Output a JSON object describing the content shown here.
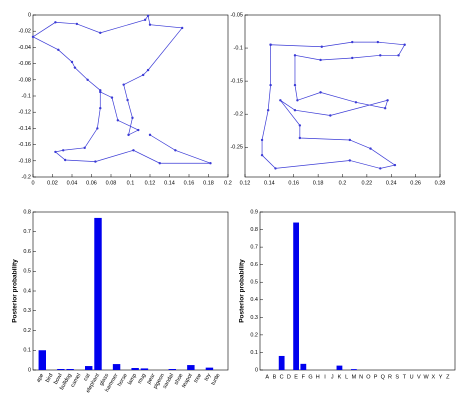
{
  "chart_data": [
    {
      "type": "line",
      "color": "#3b3bd6",
      "x": [
        0.069,
        0.056,
        0.043,
        0.04,
        0.026,
        0,
        0.023,
        0.045,
        0.069,
        0.115,
        0.118,
        0.12,
        0.153,
        0.118,
        0.113,
        0.093,
        0.097,
        0.102,
        0.098,
        0.108,
        0.087,
        0.081,
        0.069,
        0.069,
        0.066,
        0.053,
        0.031,
        0.023,
        0.033,
        0.064,
        0.103,
        0.13,
        0.182,
        0.146,
        0.12
      ],
      "values": [
        -0.093,
        -0.08,
        -0.065,
        -0.058,
        -0.043,
        -0.027,
        -0.009,
        -0.011,
        -0.022,
        -0.006,
        -0.001,
        -0.012,
        -0.016,
        -0.068,
        -0.074,
        -0.086,
        -0.105,
        -0.127,
        -0.148,
        -0.142,
        -0.13,
        -0.102,
        -0.095,
        -0.115,
        -0.14,
        -0.164,
        -0.167,
        -0.169,
        -0.179,
        -0.181,
        -0.167,
        -0.183,
        -0.183,
        -0.167,
        -0.148
      ],
      "xlim": [
        0,
        0.2
      ],
      "xticks": [
        0,
        0.02,
        0.04,
        0.06,
        0.08,
        0.1,
        0.12,
        0.14,
        0.16,
        0.18,
        0.2
      ],
      "ylim": [
        -0.2,
        0
      ],
      "yticks": [
        -0.2,
        -0.18,
        -0.16,
        -0.14,
        -0.12,
        -0.1,
        -0.08,
        -0.06,
        -0.04,
        -0.02,
        0
      ]
    },
    {
      "type": "line",
      "color": "#3b3bd6",
      "x": [
        0.141,
        0.183,
        0.208,
        0.229,
        0.251,
        0.246,
        0.231,
        0.208,
        0.182,
        0.161,
        0.161,
        0.163,
        0.182,
        0.211,
        0.235,
        0.237,
        0.19,
        0.161,
        0.149,
        0.165,
        0.165,
        0.206,
        0.223,
        0.243,
        0.231,
        0.206,
        0.145,
        0.134,
        0.134,
        0.139,
        0.141,
        0.141
      ],
      "values": [
        -0.095,
        -0.098,
        -0.091,
        -0.091,
        -0.095,
        -0.111,
        -0.111,
        -0.115,
        -0.118,
        -0.111,
        -0.156,
        -0.179,
        -0.167,
        -0.182,
        -0.191,
        -0.179,
        -0.202,
        -0.194,
        -0.179,
        -0.217,
        -0.236,
        -0.239,
        -0.252,
        -0.277,
        -0.282,
        -0.27,
        -0.282,
        -0.262,
        -0.239,
        -0.194,
        -0.156,
        -0.095
      ],
      "xlim": [
        0.12,
        0.28
      ],
      "xticks": [
        0.12,
        0.14,
        0.16,
        0.18,
        0.2,
        0.22,
        0.24,
        0.26,
        0.28
      ],
      "ylim": [
        -0.295,
        -0.05
      ],
      "yticks": [
        -0.25,
        -0.2,
        -0.15,
        -0.1,
        -0.05
      ]
    },
    {
      "type": "bar",
      "color": "#0000ee",
      "ylabel": "Posterior probability",
      "categories": [
        "ape",
        "bird",
        "bowl",
        "bulldog",
        "camel",
        "cat",
        "elephant",
        "glass",
        "hammer",
        "horse",
        "lamp",
        "mug",
        "pear",
        "pigeon",
        "sandal",
        "shoe",
        "teapot",
        "tree",
        "toy",
        "turtle"
      ],
      "values": [
        0.1,
        0,
        0.005,
        0.005,
        0,
        0.02,
        0.77,
        0,
        0.03,
        0,
        0.01,
        0.008,
        0,
        0,
        0.005,
        0,
        0.025,
        0,
        0.012,
        0
      ],
      "ylim": [
        0,
        0.8
      ],
      "yticks": [
        0,
        0.1,
        0.2,
        0.3,
        0.4,
        0.5,
        0.6,
        0.7,
        0.8
      ]
    },
    {
      "type": "bar",
      "color": "#0000ee",
      "ylabel": "Posterior probability",
      "categories": [
        "A",
        "B",
        "C",
        "D",
        "E",
        "F",
        "G",
        "H",
        "I",
        "J",
        "K",
        "L",
        "M",
        "N",
        "O",
        "P",
        "Q",
        "R",
        "S",
        "T",
        "U",
        "V",
        "W",
        "X",
        "Y",
        "Z"
      ],
      "values": [
        0,
        0,
        0.08,
        0,
        0.84,
        0.035,
        0,
        0,
        0,
        0,
        0.025,
        0,
        0.005,
        0,
        0,
        0,
        0,
        0,
        0,
        0,
        0,
        0,
        0,
        0,
        0,
        0
      ],
      "ylim": [
        0,
        0.9
      ],
      "yticks": [
        0,
        0.1,
        0.2,
        0.3,
        0.4,
        0.5,
        0.6,
        0.7,
        0.8,
        0.9
      ]
    }
  ]
}
